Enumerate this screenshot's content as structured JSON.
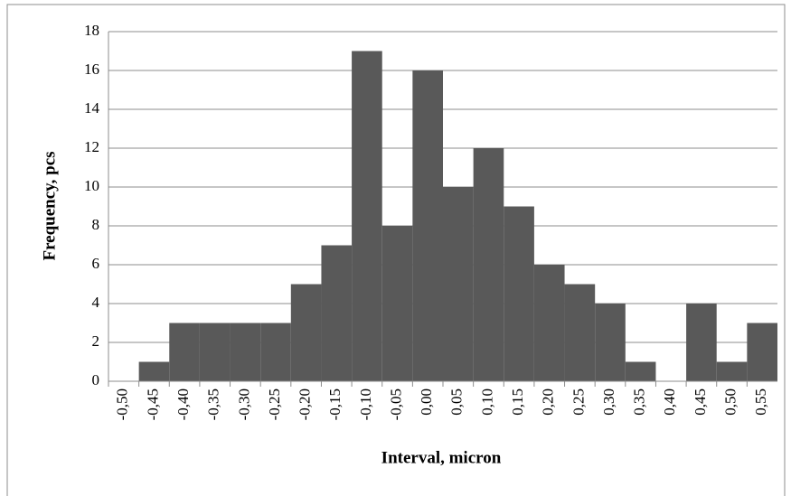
{
  "chart_data": {
    "type": "bar",
    "xlabel": "Interval, micron",
    "ylabel": "Frequency, pcs",
    "categories": [
      "-0,50",
      "-0,45",
      "-0,40",
      "-0,35",
      "-0,30",
      "-0,25",
      "-0,20",
      "-0,15",
      "-0,10",
      "-0,05",
      "0,00",
      "0,05",
      "0,10",
      "0,15",
      "0,20",
      "0,25",
      "0,30",
      "0,35",
      "0,40",
      "0,45",
      "0,50",
      "0,55"
    ],
    "values": [
      0,
      1,
      3,
      3,
      3,
      3,
      5,
      7,
      17,
      8,
      16,
      10,
      12,
      9,
      6,
      5,
      4,
      1,
      0,
      4,
      1,
      3
    ],
    "color": "#595959",
    "ylim": [
      0,
      18
    ],
    "yticks": [
      0,
      2,
      4,
      6,
      8,
      10,
      12,
      14,
      16,
      18
    ],
    "grid": true
  }
}
